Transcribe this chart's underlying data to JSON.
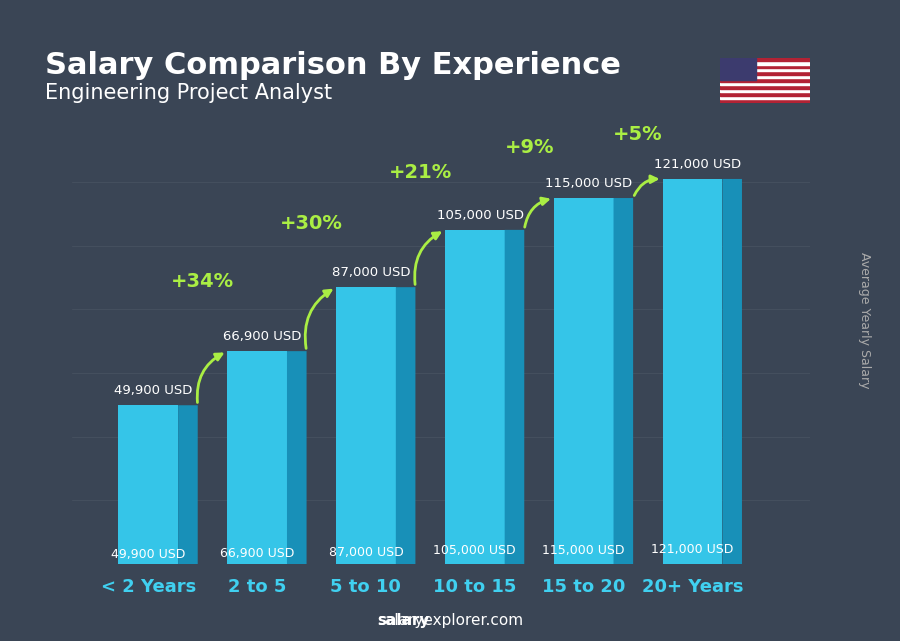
{
  "title": "Salary Comparison By Experience",
  "subtitle": "Engineering Project Analyst",
  "categories": [
    "< 2 Years",
    "2 to 5",
    "5 to 10",
    "10 to 15",
    "15 to 20",
    "20+ Years"
  ],
  "values": [
    49900,
    66900,
    87000,
    105000,
    115000,
    121000
  ],
  "value_labels": [
    "49,900 USD",
    "66,900 USD",
    "87,000 USD",
    "105,000 USD",
    "115,000 USD",
    "121,000 USD"
  ],
  "pct_labels": [
    "+34%",
    "+30%",
    "+21%",
    "+9%",
    "+5%"
  ],
  "bar_color_top": "#40d0f0",
  "bar_color_mid": "#30b8e0",
  "bar_color_bottom": "#1890b8",
  "bar_color_side": "#1070a0",
  "background_color": "#1a1a2e",
  "title_color": "#ffffff",
  "subtitle_color": "#ffffff",
  "ylabel_text": "Average Yearly Salary",
  "ylabel_color": "#cccccc",
  "xlabel_color": "#40d0f0",
  "pct_color": "#aaee44",
  "value_color": "#ffffff",
  "footer": "salaryexplorer.com",
  "ylim": [
    0,
    145000
  ]
}
